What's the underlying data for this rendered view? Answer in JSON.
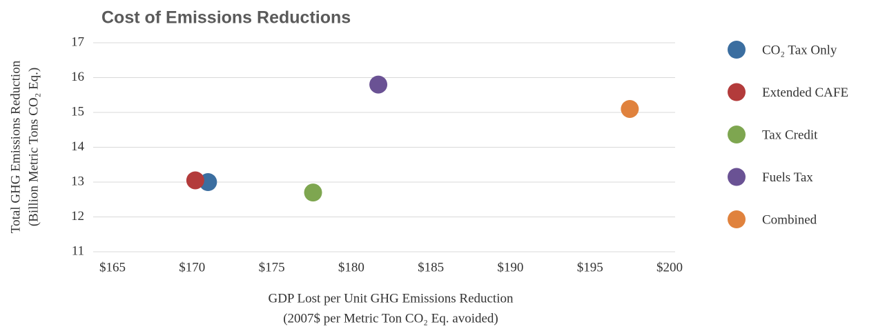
{
  "chart_data": {
    "type": "scatter",
    "title": "Cost of Emissions Reductions",
    "x_label": [
      "GDP Lost per Unit GHG Emissions Reduction",
      "(2007$ per Metric Ton CO₂ Eq. avoided)"
    ],
    "y_label": [
      "Total GHG Emissions Reduction",
      "(Billion Metric Tons CO₂ Eq.)"
    ],
    "xlim": [
      165,
      200
    ],
    "xticks": [
      {
        "value": 165,
        "label": "$165"
      },
      {
        "value": 170,
        "label": "$170"
      },
      {
        "value": 175,
        "label": "$175"
      },
      {
        "value": 180,
        "label": "$180"
      },
      {
        "value": 185,
        "label": "$185"
      },
      {
        "value": 190,
        "label": "$190"
      },
      {
        "value": 195,
        "label": "$195"
      },
      {
        "value": 200,
        "label": "$200"
      }
    ],
    "ylim": [
      11,
      17
    ],
    "yticks": [
      11,
      12,
      13,
      14,
      15,
      16,
      17
    ],
    "grid": true,
    "legend": "right",
    "series": [
      {
        "name": "CO₂ Tax Only",
        "color": "#3b6ea0",
        "x": [
          171.0
        ],
        "values": [
          13.0
        ]
      },
      {
        "name": "Extended CAFE",
        "color": "#b33b3b",
        "x": [
          170.2
        ],
        "values": [
          13.05
        ]
      },
      {
        "name": "Tax Credit",
        "color": "#7ea650",
        "x": [
          177.6
        ],
        "values": [
          12.7
        ]
      },
      {
        "name": "Fuels Tax",
        "color": "#6a5294",
        "x": [
          181.7
        ],
        "values": [
          15.8
        ]
      },
      {
        "name": "Combined",
        "color": "#e0823d",
        "x": [
          197.5
        ],
        "values": [
          15.1
        ]
      }
    ]
  }
}
